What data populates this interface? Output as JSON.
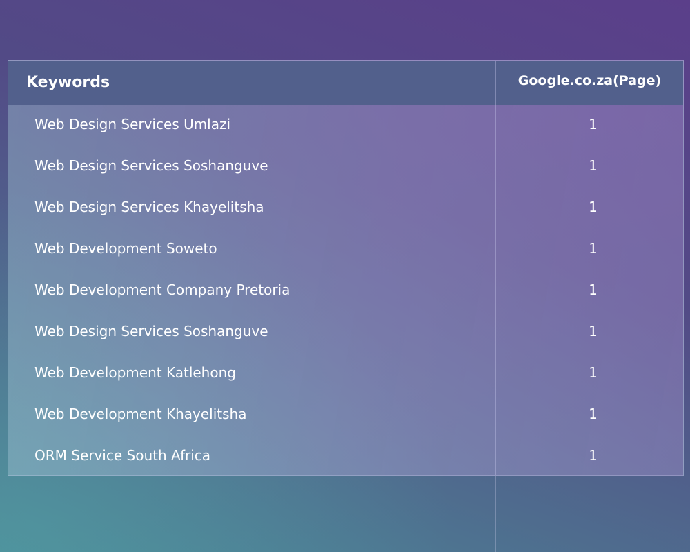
{
  "table": {
    "headers": {
      "keywords": "Keywords",
      "page": "Google.co.za(Page)"
    },
    "rows": [
      {
        "keyword": "Web Design Services Umlazi",
        "page": "1"
      },
      {
        "keyword": "Web Design Services Soshanguve",
        "page": "1"
      },
      {
        "keyword": "Web Design Services Khayelitsha",
        "page": "1"
      },
      {
        "keyword": "Web Development Soweto",
        "page": "1"
      },
      {
        "keyword": "Web Development Company Pretoria",
        "page": "1"
      },
      {
        "keyword": "Web Design Services Soshanguve",
        "page": "1"
      },
      {
        "keyword": "Web Development Katlehong",
        "page": "1"
      },
      {
        "keyword": "Web Development Khayelitsha",
        "page": "1"
      },
      {
        "keyword": "ORM Service South Africa",
        "page": "1"
      }
    ]
  },
  "colors": {
    "header_bg": "#52608c",
    "text": "#ffffff",
    "bg_top_right": "#5b3f8a",
    "bg_bottom_left": "#4a8a98"
  }
}
